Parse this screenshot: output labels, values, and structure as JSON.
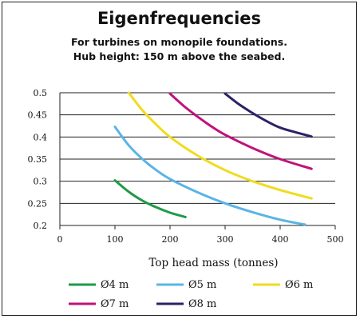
{
  "chart_data": {
    "type": "line",
    "title": "Eigenfrequencies",
    "subtitle_lines": [
      "For turbines on monopile foundations.",
      "Hub height: 150 m above the seabed."
    ],
    "xlabel": "Top head mass (tonnes)",
    "ylabel": "",
    "xlim": [
      0,
      500
    ],
    "ylim": [
      0.2,
      0.5
    ],
    "xticks": [
      0,
      100,
      200,
      300,
      400,
      500
    ],
    "yticks": [
      0.2,
      0.25,
      0.3,
      0.35,
      0.4,
      0.45,
      0.5
    ],
    "xtick_labels": [
      "0",
      "100",
      "200",
      "300",
      "400",
      "500"
    ],
    "ytick_labels": [
      "0.2",
      "0.25",
      "0.3",
      "0.35",
      "0.4",
      "0.45",
      "0.5"
    ],
    "grid": "horizontal",
    "legend_position": "bottom",
    "series": [
      {
        "name": "Ø4 m",
        "color": "#1e9a48",
        "x": [
          100,
          125,
          150,
          175,
          200,
          228
        ],
        "y": [
          0.302,
          0.276,
          0.256,
          0.241,
          0.229,
          0.219
        ]
      },
      {
        "name": "Ø5 m",
        "color": "#5ab4e6",
        "x": [
          100,
          125,
          150,
          175,
          200,
          250,
          300,
          350,
          400,
          445
        ],
        "y": [
          0.423,
          0.381,
          0.35,
          0.325,
          0.305,
          0.275,
          0.25,
          0.23,
          0.213,
          0.202
        ]
      },
      {
        "name": "Ø6 m",
        "color": "#f0dc1e",
        "x": [
          125,
          150,
          175,
          200,
          250,
          300,
          350,
          400,
          457
        ],
        "y": [
          0.5,
          0.46,
          0.428,
          0.4,
          0.358,
          0.325,
          0.3,
          0.28,
          0.261
        ]
      },
      {
        "name": "Ø7 m",
        "color": "#c0137a",
        "x": [
          200,
          225,
          250,
          275,
          300,
          350,
          400,
          457
        ],
        "y": [
          0.498,
          0.47,
          0.446,
          0.424,
          0.405,
          0.375,
          0.35,
          0.328
        ]
      },
      {
        "name": "Ø8 m",
        "color": "#2e2166",
        "x": [
          300,
          325,
          350,
          375,
          400,
          430,
          457
        ],
        "y": [
          0.498,
          0.474,
          0.454,
          0.436,
          0.421,
          0.41,
          0.401
        ]
      }
    ]
  }
}
